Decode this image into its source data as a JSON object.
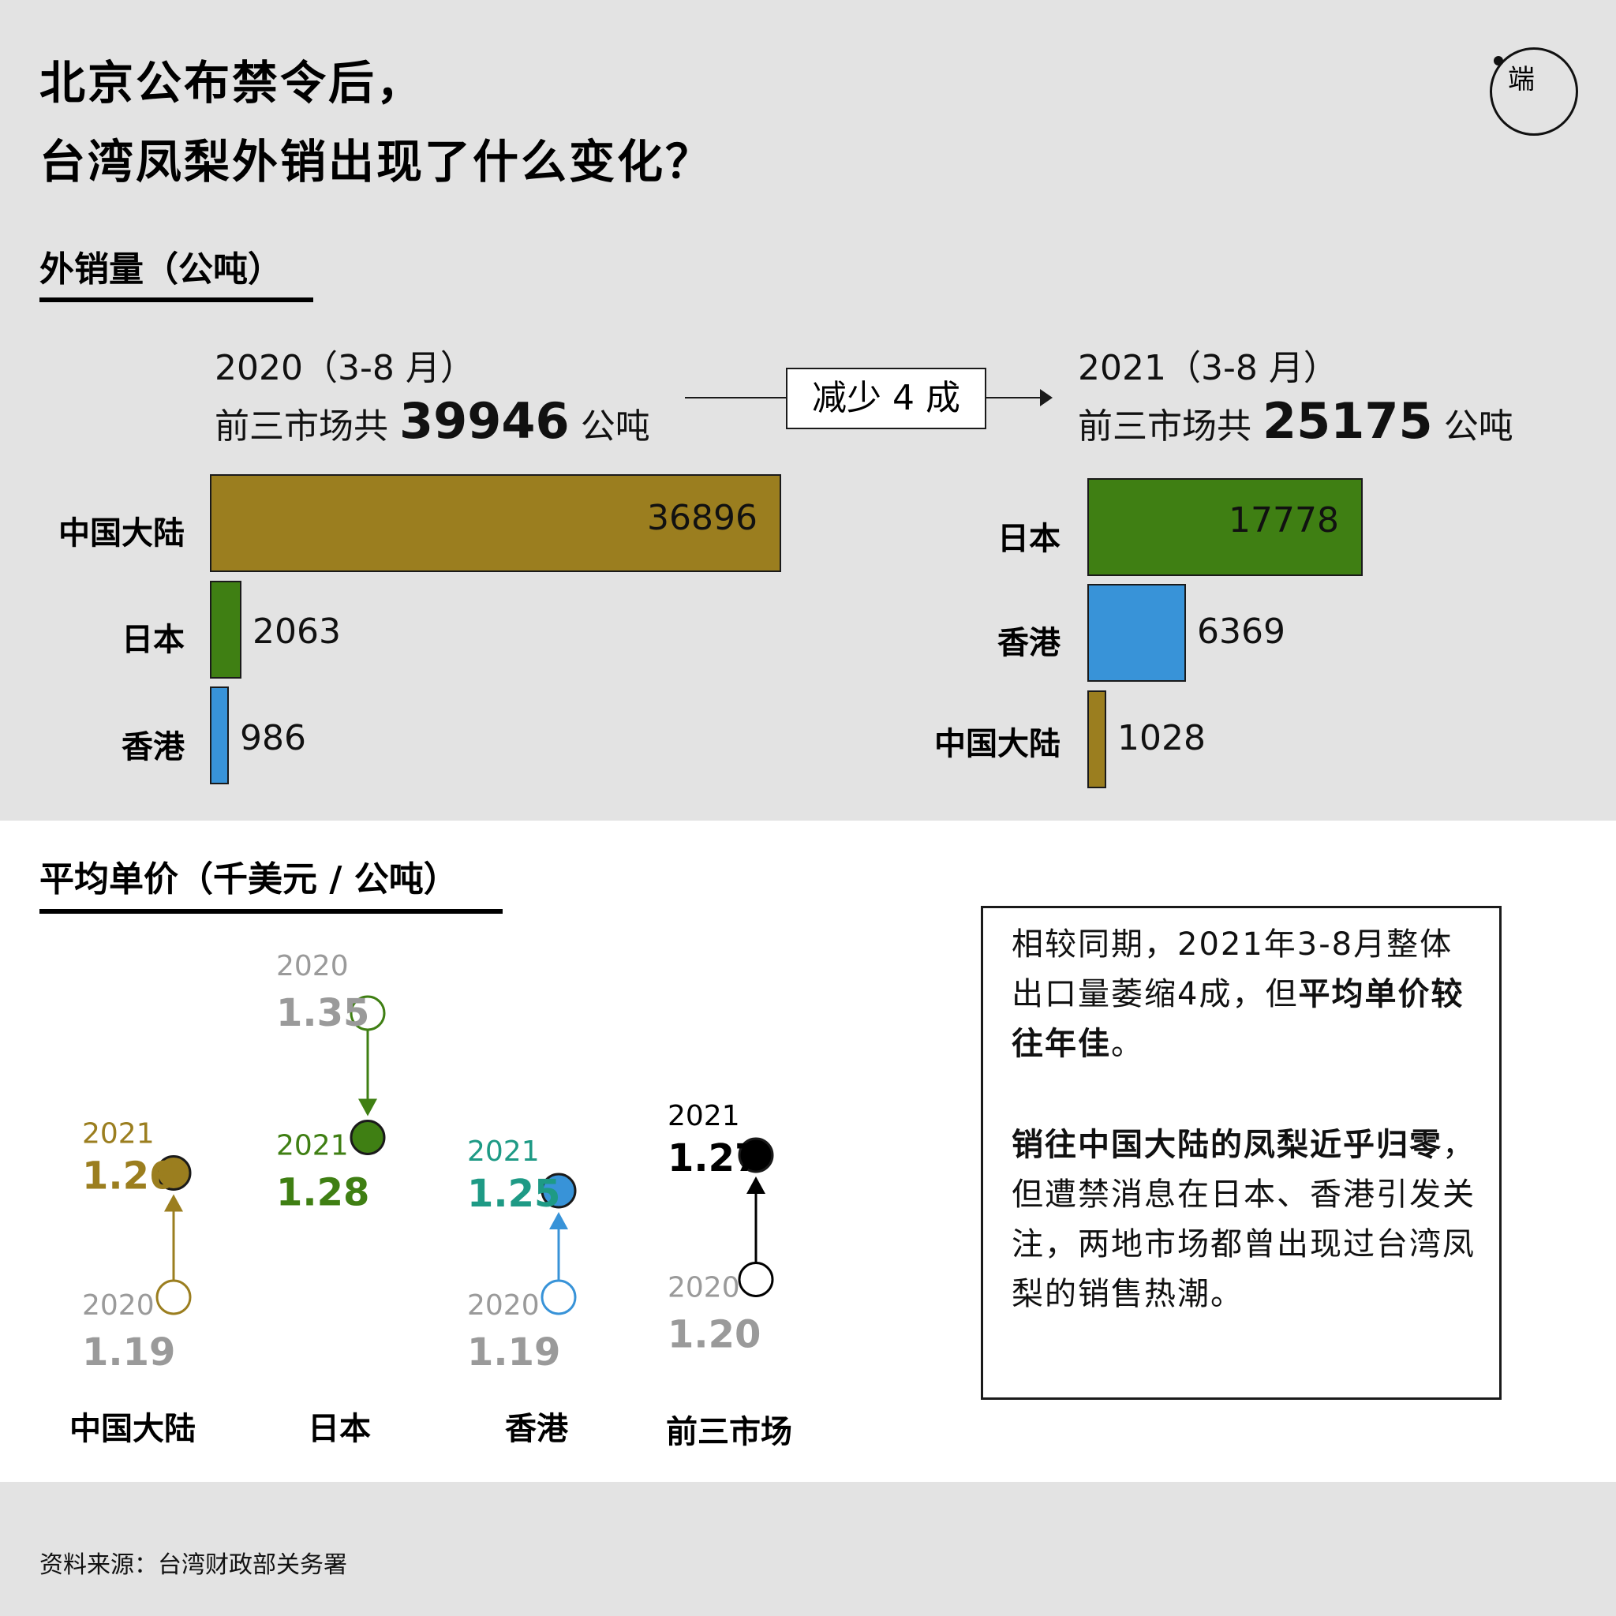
{
  "title_lines": [
    "北京公布禁令后，",
    "台湾凤梨外销出现了什么变化？"
  ],
  "brand_glyph": "端",
  "volume": {
    "section_title": "外销量（公吨）",
    "arrow_label": "减少 4 成",
    "left": {
      "year_label": "2020（3-8 月）",
      "total_prefix": "前三市场共 ",
      "total_value": "39946",
      "total_unit": " 公吨",
      "items": [
        {
          "label": "中国大陆",
          "value": 36896,
          "color": "#9b7e1f"
        },
        {
          "label": "日本",
          "value": 2063,
          "color": "#3f7f13"
        },
        {
          "label": "香港",
          "value": 986,
          "color": "#3893d8"
        }
      ]
    },
    "right": {
      "year_label": "2021（3-8 月）",
      "total_prefix": "前三市场共 ",
      "total_value": "25175",
      "total_unit": " 公吨",
      "items": [
        {
          "label": "日本",
          "value": 17778,
          "color": "#3f7f13"
        },
        {
          "label": "香港",
          "value": 6369,
          "color": "#3893d8"
        },
        {
          "label": "中国大陆",
          "value": 1028,
          "color": "#9b7e1f"
        }
      ]
    }
  },
  "price": {
    "section_title": "平均单价（千美元 / 公吨）",
    "year_2020": "2020",
    "year_2021": "2021",
    "markets": [
      {
        "name": "中国大陆",
        "v2020": "1.19",
        "v2021": "1.26",
        "color": "#9b7e1f",
        "label_color_2021": "#9b7e1f"
      },
      {
        "name": "日本",
        "v2020": "1.35",
        "v2021": "1.28",
        "color": "#3f7f13",
        "label_color_2021": "#3f7f13"
      },
      {
        "name": "香港",
        "v2020": "1.19",
        "v2021": "1.25",
        "color": "#3893d8",
        "label_color_2021": "#1e9a85"
      },
      {
        "name": "前三市场",
        "v2020": "1.20",
        "v2021": "1.27",
        "color": "#000000",
        "label_color_2021": "#000000"
      }
    ]
  },
  "chart_data": [
    {
      "type": "bar",
      "title": "外销量（公吨）",
      "subtitle": "2020（3-8 月）",
      "categories": [
        "中国大陆",
        "日本",
        "香港"
      ],
      "values": [
        36896,
        2063,
        986
      ]
    },
    {
      "type": "bar",
      "title": "外销量（公吨）",
      "subtitle": "2021（3-8 月）",
      "categories": [
        "日本",
        "香港",
        "中国大陆"
      ],
      "values": [
        17778,
        6369,
        1028
      ]
    },
    {
      "type": "scatter",
      "title": "平均单价（千美元 / 公吨）",
      "categories": [
        "中国大陆",
        "日本",
        "香港",
        "前三市场"
      ],
      "series": [
        {
          "name": "2020",
          "values": [
            1.19,
            1.35,
            1.19,
            1.2
          ]
        },
        {
          "name": "2021",
          "values": [
            1.26,
            1.28,
            1.25,
            1.27
          ]
        }
      ]
    }
  ],
  "note": {
    "p1_a": "相较同期，2021年3-8月整体出口量萎缩4成，但",
    "p1_b": "平均单价较往年佳",
    "p1_c": "。",
    "p2_a": "销往中国大陆的凤梨近乎归零",
    "p2_b": "，但遭禁消息在日本、香港引发关注，两地市场都曾出现过台湾凤梨的销售热潮。"
  },
  "source": "资料来源：台湾财政部关务署"
}
